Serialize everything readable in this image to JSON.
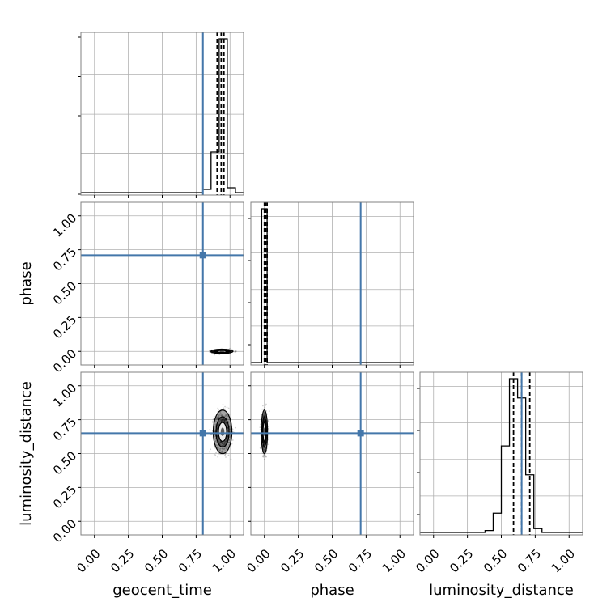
{
  "chart_data": {
    "type": "corner",
    "parameters": [
      "geocent_time",
      "phase",
      "luminosity_distance"
    ],
    "range": [
      -0.1,
      1.1
    ],
    "ticks": [
      0.0,
      0.25,
      0.5,
      0.75,
      1.0
    ],
    "tick_labels": [
      "0.00",
      "0.25",
      "0.50",
      "0.75",
      "1.00"
    ],
    "grid": true,
    "colors": {
      "truth": "#4477aa",
      "samples": "#000000",
      "grid": "#b0b0b0",
      "frame": "#808080"
    },
    "truths": {
      "geocent_time": 0.8,
      "phase": 0.71,
      "luminosity_distance": 0.65
    },
    "quantiles": {
      "geocent_time": [
        0.905,
        0.935,
        0.955
      ],
      "phase": [
        0.0,
        0.01,
        0.02
      ],
      "luminosity_distance": [
        0.59,
        0.65,
        0.71
      ]
    },
    "histograms": {
      "geocent_time": {
        "edges": [
          0.8,
          0.86,
          0.92,
          0.98,
          1.04
        ],
        "counts": [
          0.02,
          0.25,
          0.95,
          0.03
        ]
      },
      "phase": {
        "edges": [
          -0.02,
          0.02
        ],
        "counts": [
          1.0
        ]
      },
      "luminosity_distance": {
        "edges": [
          0.38,
          0.44,
          0.5,
          0.56,
          0.62,
          0.68,
          0.74,
          0.8,
          0.86
        ],
        "counts": [
          0.01,
          0.1,
          0.45,
          0.8,
          0.7,
          0.3,
          0.02,
          0.0
        ]
      }
    },
    "posteriors_2d": {
      "geocent_time_vs_phase": {
        "x_center": 0.94,
        "y_center": 0.0,
        "x_spread": 0.035,
        "y_spread": 0.006
      },
      "geocent_time_vs_luminosity_distance": {
        "x_center": 0.945,
        "y_center": 0.66,
        "x_spread": 0.03,
        "y_spread": 0.07
      },
      "phase_vs_luminosity_distance": {
        "x_center": 0.0,
        "y_center": 0.66,
        "x_spread": 0.01,
        "y_spread": 0.07
      }
    }
  }
}
